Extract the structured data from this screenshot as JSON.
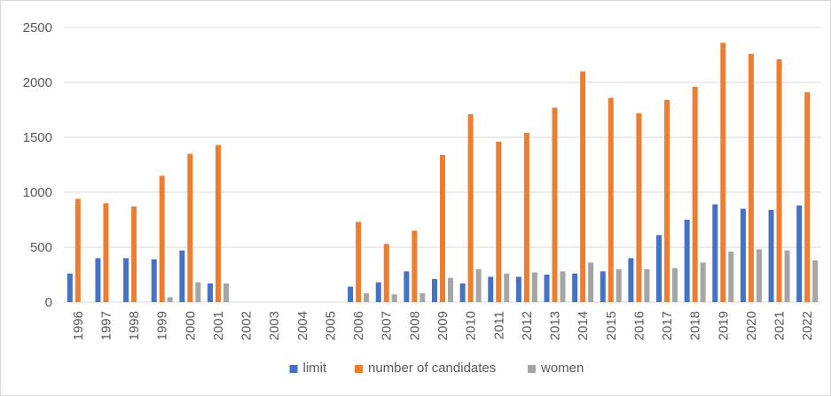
{
  "chart_data": {
    "type": "bar",
    "title": "",
    "xlabel": "",
    "ylabel": "",
    "ylim": [
      0,
      2500
    ],
    "yticks": [
      0,
      500,
      1000,
      1500,
      2000,
      2500
    ],
    "grid": true,
    "legend_position": "bottom",
    "categories": [
      "1996",
      "1997",
      "1998",
      "1999",
      "2000",
      "2001",
      "2002",
      "2003",
      "2004",
      "2005",
      "2006",
      "2007",
      "2008",
      "2009",
      "2010",
      "2011",
      "2012",
      "2013",
      "2014",
      "2015",
      "2016",
      "2017",
      "2018",
      "2019",
      "2020",
      "2021",
      "2022"
    ],
    "series": [
      {
        "name": "limit",
        "color": "#4472c4",
        "values": [
          260,
          400,
          400,
          390,
          470,
          170,
          0,
          0,
          0,
          0,
          140,
          180,
          280,
          210,
          170,
          230,
          230,
          250,
          260,
          280,
          400,
          610,
          750,
          890,
          850,
          840,
          880
        ]
      },
      {
        "name": "number of candidates",
        "color": "#ed7d31",
        "values": [
          940,
          900,
          870,
          1150,
          1350,
          1430,
          0,
          0,
          0,
          0,
          730,
          530,
          650,
          1340,
          1710,
          1460,
          1540,
          1770,
          2100,
          1860,
          1720,
          1840,
          1960,
          2360,
          2260,
          2210,
          1910
        ]
      },
      {
        "name": "women",
        "color": "#a5a5a5",
        "values": [
          0,
          0,
          0,
          45,
          180,
          170,
          0,
          0,
          0,
          0,
          80,
          70,
          80,
          220,
          300,
          260,
          270,
          280,
          360,
          300,
          300,
          310,
          360,
          460,
          480,
          470,
          380
        ]
      }
    ]
  }
}
